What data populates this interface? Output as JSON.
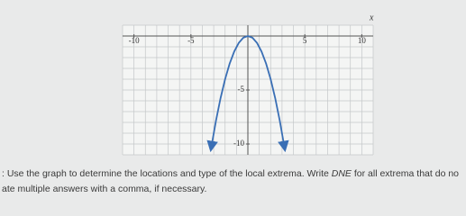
{
  "chart_data": {
    "type": "line",
    "x_label": "x",
    "x": [
      -3.2,
      -2.8,
      -2.4,
      -2,
      -1.6,
      -1.2,
      -0.8,
      -0.4,
      0,
      0.4,
      0.8,
      1.2,
      1.6,
      2,
      2.4,
      2.8,
      3.2
    ],
    "series": [
      {
        "color": "#3a6fb5",
        "values": [
          -10.24,
          -7.84,
          -5.76,
          -4,
          -2.56,
          -1.44,
          -0.64,
          -0.16,
          0,
          -0.16,
          -0.64,
          -1.44,
          -2.56,
          -4,
          -5.76,
          -7.84,
          -10.24
        ]
      }
    ],
    "xlim": [
      -11,
      11
    ],
    "ylim": [
      -11,
      1
    ],
    "xticks": [
      -10,
      -5,
      5,
      10
    ],
    "yticks": [
      -5,
      -10
    ],
    "grid": true,
    "grid_step": 1
  },
  "instructions": {
    "line1": {
      "before": ": Use the graph to determine the locations and type of the local extrema. Write ",
      "emphasis": "DNE",
      "after": " for all extrema that do no"
    },
    "line2": "ate multiple answers with a comma, if necessary."
  }
}
